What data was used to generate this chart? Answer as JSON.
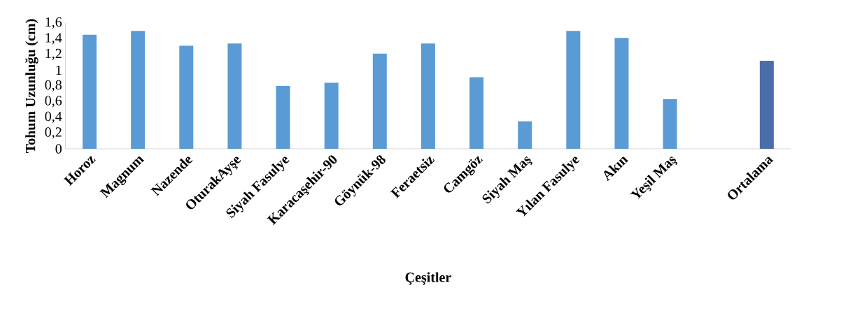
{
  "chart_data": {
    "type": "bar",
    "xlabel": "Çeşitler",
    "ylabel": "Tohum Uzunluğu (cm)",
    "categories": [
      "Horoz",
      "Magnum",
      "Nazende",
      "OturakAyşe",
      "Siyah Fasulye",
      "Karacaşehir-90",
      "Göynük-98",
      "Feraetsiz",
      "Camgöz",
      "Siyah Maş",
      "Yılan Fasulye",
      "Akın",
      "Yeşil Maş",
      null,
      "Ortalama"
    ],
    "values": [
      1.45,
      1.5,
      1.31,
      1.34,
      0.8,
      0.84,
      1.21,
      1.34,
      0.91,
      0.35,
      1.5,
      1.41,
      0.63,
      null,
      1.12
    ],
    "colors": [
      "#5b9bd5",
      "#5b9bd5",
      "#5b9bd5",
      "#5b9bd5",
      "#5b9bd5",
      "#5b9bd5",
      "#5b9bd5",
      "#5b9bd5",
      "#5b9bd5",
      "#5b9bd5",
      "#5b9bd5",
      "#5b9bd5",
      "#5b9bd5",
      "#5b9bd5",
      "#4a6fa8"
    ],
    "ylim": [
      0,
      1.6
    ],
    "yticks": [
      0,
      {
        "value": 0.2,
        "label": "0,2"
      },
      {
        "value": 0.4,
        "label": "0,4"
      },
      {
        "value": 0.6,
        "label": "0,6"
      },
      {
        "value": 0.8,
        "label": "0,8"
      },
      1,
      {
        "value": 1.2,
        "label": "1,2"
      },
      {
        "value": 1.4,
        "label": "1,4"
      },
      {
        "value": 1.6,
        "label": "1,6"
      }
    ],
    "grid": false
  }
}
